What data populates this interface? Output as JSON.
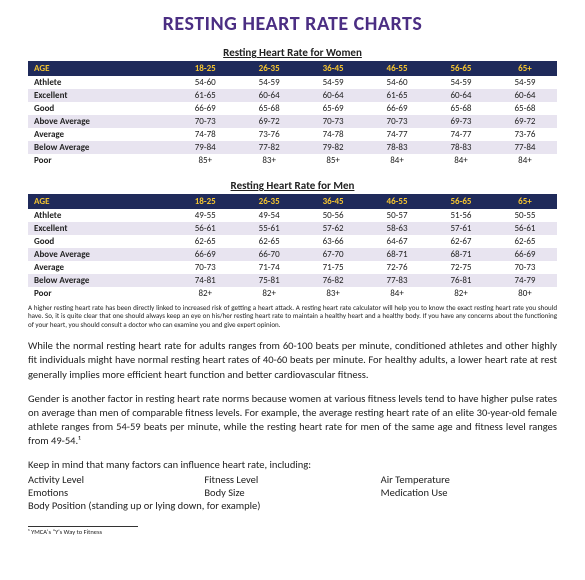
{
  "title": "RESTING HEART RATE CHARTS",
  "womenTable": {
    "caption": "Resting Heart Rate for Women",
    "headers": [
      "AGE",
      "18-25",
      "26-35",
      "36-45",
      "46-55",
      "56-65",
      "65+"
    ],
    "rows": [
      [
        "Athlete",
        "54-60",
        "54-59",
        "54-59",
        "54-60",
        "54-59",
        "54-59"
      ],
      [
        "Excellent",
        "61-65",
        "60-64",
        "60-64",
        "61-65",
        "60-64",
        "60-64"
      ],
      [
        "Good",
        "66-69",
        "65-68",
        "65-69",
        "66-69",
        "65-68",
        "65-68"
      ],
      [
        "Above Average",
        "70-73",
        "69-72",
        "70-73",
        "70-73",
        "69-73",
        "69-72"
      ],
      [
        "Average",
        "74-78",
        "73-76",
        "74-78",
        "74-77",
        "74-77",
        "73-76"
      ],
      [
        "Below Average",
        "79-84",
        "77-82",
        "79-82",
        "78-83",
        "78-83",
        "77-84"
      ],
      [
        "Poor",
        "85+",
        "83+",
        "85+",
        "84+",
        "84+",
        "84+"
      ]
    ]
  },
  "menTable": {
    "caption": "Resting Heart Rate for Men",
    "headers": [
      "AGE",
      "18-25",
      "26-35",
      "36-45",
      "46-55",
      "56-65",
      "65+"
    ],
    "rows": [
      [
        "Athlete",
        "49-55",
        "49-54",
        "50-56",
        "50-57",
        "51-56",
        "50-55"
      ],
      [
        "Excellent",
        "56-61",
        "55-61",
        "57-62",
        "58-63",
        "57-61",
        "56-61"
      ],
      [
        "Good",
        "62-65",
        "62-65",
        "63-66",
        "64-67",
        "62-67",
        "62-65"
      ],
      [
        "Above Average",
        "66-69",
        "66-70",
        "67-70",
        "68-71",
        "68-71",
        "66-69"
      ],
      [
        "Average",
        "70-73",
        "71-74",
        "71-75",
        "72-76",
        "72-75",
        "70-73"
      ],
      [
        "Below Average",
        "74-81",
        "75-81",
        "76-82",
        "77-83",
        "76-81",
        "74-79"
      ],
      [
        "Poor",
        "82+",
        "82+",
        "83+",
        "84+",
        "82+",
        "80+"
      ]
    ]
  },
  "fine": "A higher resting heart rate has been directly linked to increased risk of getting a heart attack. A resting heart rate calculator will help you to know the exact resting heart rate you should have. So, it is quite clear that one should always keep an eye on his/her resting heart rate to maintain a healthy heart and a healthy body. If you have any concerns about the functioning of your heart, you should consult a doctor who can examine you and give expert opinion.",
  "para1": "While the normal resting heart rate for adults ranges from 60-100 beats per minute, conditioned athletes and other highly fit individuals might have normal resting heart rates of 40-60 beats per minute. For healthy adults, a lower heart rate at rest generally implies more efficient heart function and better cardiovascular fitness.",
  "para2": "Gender is another factor in resting heart rate norms because women at various fitness levels tend to have higher pulse rates on average than men of comparable fitness levels. For example, the average resting heart rate of an elite 30-year-old female athlete ranges from 54-59 beats per minute, while the resting heart rate for men of the same age and fitness level ranges from 49-54.¹",
  "factorsLabel": "Keep in mind that many factors can influence heart rate, including:",
  "factors": {
    "c1": [
      "Activity Level",
      "Emotions"
    ],
    "c2": [
      "Fitness Level",
      "Body Size"
    ],
    "c3": [
      "Air Temperature",
      "Medication Use"
    ],
    "full": "Body Position (standing up or lying down, for example)"
  },
  "footnote": "¹ YMCA's \"Y's Way to Fitness"
}
